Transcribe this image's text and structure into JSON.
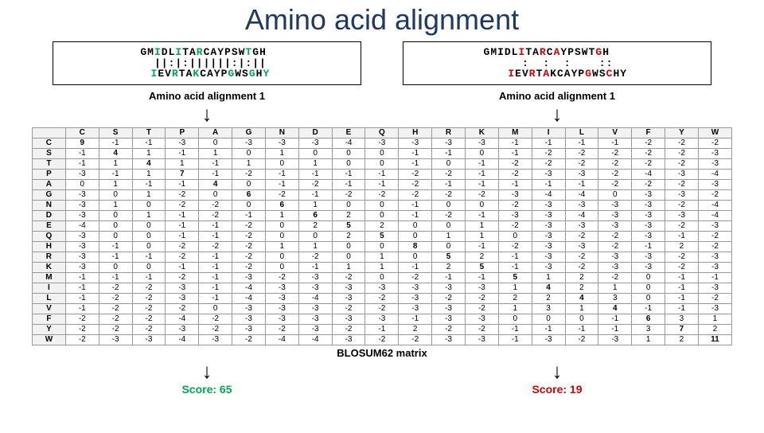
{
  "title": "Amino acid alignment",
  "left": {
    "seq1": [
      {
        "t": "GM",
        "c": "#000"
      },
      {
        "t": "I",
        "c": "#00a651"
      },
      {
        "t": "DL",
        "c": "#000"
      },
      {
        "t": "I",
        "c": "#00a651"
      },
      {
        "t": "TA",
        "c": "#000"
      },
      {
        "t": "R",
        "c": "#00a651"
      },
      {
        "t": "CAYPSW",
        "c": "#000"
      },
      {
        "t": "T",
        "c": "#00a651"
      },
      {
        "t": "GH ",
        "c": "#000"
      }
    ],
    "mid": "  ||:|:||||||:|:|| ",
    "seq2": [
      {
        "t": " ",
        "c": "#000"
      },
      {
        "t": "I",
        "c": "#00a651"
      },
      {
        "t": "EV",
        "c": "#000"
      },
      {
        "t": "R",
        "c": "#00a651"
      },
      {
        "t": "TA",
        "c": "#000"
      },
      {
        "t": "K",
        "c": "#00a651"
      },
      {
        "t": "CAYP",
        "c": "#000"
      },
      {
        "t": "G",
        "c": "#00a651"
      },
      {
        "t": "WS",
        "c": "#000"
      },
      {
        "t": "G",
        "c": "#00a651"
      },
      {
        "t": "H",
        "c": "#000"
      },
      {
        "t": "Y",
        "c": "#00a651"
      }
    ],
    "label": "Amino acid alignment 1",
    "score": "Score: 65"
  },
  "right": {
    "seq1": [
      {
        "t": "GMIDL",
        "c": "#000"
      },
      {
        "t": "I",
        "c": "#d30000"
      },
      {
        "t": "TA",
        "c": "#000"
      },
      {
        "t": "R",
        "c": "#d30000"
      },
      {
        "t": "C",
        "c": "#000"
      },
      {
        "t": "A",
        "c": "#d30000"
      },
      {
        "t": "YPSWT",
        "c": "#000"
      },
      {
        "t": "G",
        "c": "#d30000"
      },
      {
        "t": "H   ",
        "c": "#000"
      }
    ],
    "mid": "     :  :  :    ::  ",
    "seq2": [
      {
        "t": "   ",
        "c": "#000"
      },
      {
        "t": "I",
        "c": "#d30000"
      },
      {
        "t": "EV",
        "c": "#000"
      },
      {
        "t": "R",
        "c": "#d30000"
      },
      {
        "t": "T",
        "c": "#000"
      },
      {
        "t": "A",
        "c": "#d30000"
      },
      {
        "t": "KCAYP",
        "c": "#000"
      },
      {
        "t": "G",
        "c": "#d30000"
      },
      {
        "t": "WS",
        "c": "#000"
      },
      {
        "t": "C",
        "c": "#d30000"
      },
      {
        "t": "HY",
        "c": "#000"
      }
    ],
    "label": "Amino acid alignment 1",
    "score": "Score: 19"
  },
  "matrix": {
    "cols": [
      "C",
      "S",
      "T",
      "P",
      "A",
      "G",
      "N",
      "D",
      "E",
      "Q",
      "H",
      "R",
      "K",
      "M",
      "I",
      "L",
      "V",
      "F",
      "Y",
      "W"
    ],
    "rows": [
      "C",
      "S",
      "T",
      "P",
      "A",
      "G",
      "N",
      "D",
      "E",
      "Q",
      "H",
      "R",
      "K",
      "M",
      "I",
      "L",
      "V",
      "F",
      "Y",
      "W"
    ],
    "data": [
      [
        9,
        -1,
        -1,
        -3,
        0,
        -3,
        -3,
        -3,
        -4,
        -3,
        -3,
        -3,
        -3,
        -1,
        -1,
        -1,
        -1,
        -2,
        -2,
        -2
      ],
      [
        -1,
        4,
        1,
        -1,
        1,
        0,
        1,
        0,
        0,
        0,
        -1,
        -1,
        0,
        -1,
        -2,
        -2,
        -2,
        -2,
        -2,
        -3
      ],
      [
        -1,
        1,
        4,
        1,
        -1,
        1,
        0,
        1,
        0,
        0,
        -1,
        0,
        -1,
        -2,
        -2,
        -2,
        -2,
        -2,
        -2,
        -3
      ],
      [
        -3,
        -1,
        1,
        7,
        -1,
        -2,
        -1,
        -1,
        -1,
        -1,
        -2,
        -2,
        -1,
        -2,
        -3,
        -3,
        -2,
        -4,
        -3,
        -4
      ],
      [
        0,
        1,
        -1,
        -1,
        4,
        0,
        -1,
        -2,
        -1,
        -1,
        -2,
        -1,
        -1,
        -1,
        -1,
        -1,
        -2,
        -2,
        -2,
        -3
      ],
      [
        -3,
        0,
        1,
        -2,
        0,
        6,
        -2,
        -1,
        -2,
        -2,
        -2,
        -2,
        -2,
        -3,
        -4,
        -4,
        0,
        -3,
        -3,
        -2
      ],
      [
        -3,
        1,
        0,
        -2,
        -2,
        0,
        6,
        1,
        0,
        0,
        -1,
        0,
        0,
        -2,
        -3,
        -3,
        -3,
        -3,
        -2,
        -4
      ],
      [
        -3,
        0,
        1,
        -1,
        -2,
        -1,
        1,
        6,
        2,
        0,
        -1,
        -2,
        -1,
        -3,
        -3,
        -4,
        -3,
        -3,
        -3,
        -4
      ],
      [
        -4,
        0,
        0,
        -1,
        -1,
        -2,
        0,
        2,
        5,
        2,
        0,
        0,
        1,
        -2,
        -3,
        -3,
        -3,
        -3,
        -2,
        -3
      ],
      [
        -3,
        0,
        0,
        -1,
        -1,
        -2,
        0,
        0,
        2,
        5,
        0,
        1,
        1,
        0,
        -3,
        -2,
        -2,
        -3,
        -1,
        -2
      ],
      [
        -3,
        -1,
        0,
        -2,
        -2,
        -2,
        1,
        1,
        0,
        0,
        8,
        0,
        -1,
        -2,
        -3,
        -3,
        -2,
        -1,
        2,
        -2
      ],
      [
        -3,
        -1,
        -1,
        -2,
        -1,
        -2,
        0,
        -2,
        0,
        1,
        0,
        5,
        2,
        -1,
        -3,
        -2,
        -3,
        -3,
        -2,
        -3
      ],
      [
        -3,
        0,
        0,
        -1,
        -1,
        -2,
        0,
        -1,
        1,
        1,
        -1,
        2,
        5,
        -1,
        -3,
        -2,
        -3,
        -3,
        -2,
        -3
      ],
      [
        -1,
        -1,
        -1,
        -2,
        -1,
        -3,
        -2,
        -3,
        -2,
        0,
        -2,
        -1,
        -1,
        5,
        1,
        2,
        -2,
        0,
        -1,
        -1
      ],
      [
        -1,
        -2,
        -2,
        -3,
        -1,
        -4,
        -3,
        -3,
        -3,
        -3,
        -3,
        -3,
        -3,
        1,
        4,
        2,
        1,
        0,
        -1,
        -3
      ],
      [
        -1,
        -2,
        -2,
        -3,
        -1,
        -4,
        -3,
        -4,
        -3,
        -2,
        -3,
        -2,
        -2,
        2,
        2,
        4,
        3,
        0,
        -1,
        -2
      ],
      [
        -1,
        -2,
        -2,
        -2,
        0,
        -3,
        -3,
        -3,
        -2,
        -2,
        -3,
        -3,
        -2,
        1,
        3,
        1,
        4,
        -1,
        -1,
        -3
      ],
      [
        -2,
        -2,
        -2,
        -4,
        -2,
        -3,
        -3,
        -3,
        -3,
        -3,
        -1,
        -3,
        -3,
        0,
        0,
        0,
        -1,
        6,
        3,
        1
      ],
      [
        -2,
        -2,
        -2,
        -3,
        -2,
        -3,
        -2,
        -3,
        -2,
        -1,
        2,
        -2,
        -2,
        -1,
        -1,
        -1,
        -1,
        3,
        7,
        2
      ],
      [
        -2,
        -3,
        -3,
        -4,
        -3,
        -2,
        -4,
        -4,
        -3,
        -2,
        -2,
        -3,
        -3,
        -1,
        -3,
        -2,
        -3,
        1,
        2,
        11
      ]
    ],
    "caption": "BLOSUM62 matrix"
  }
}
